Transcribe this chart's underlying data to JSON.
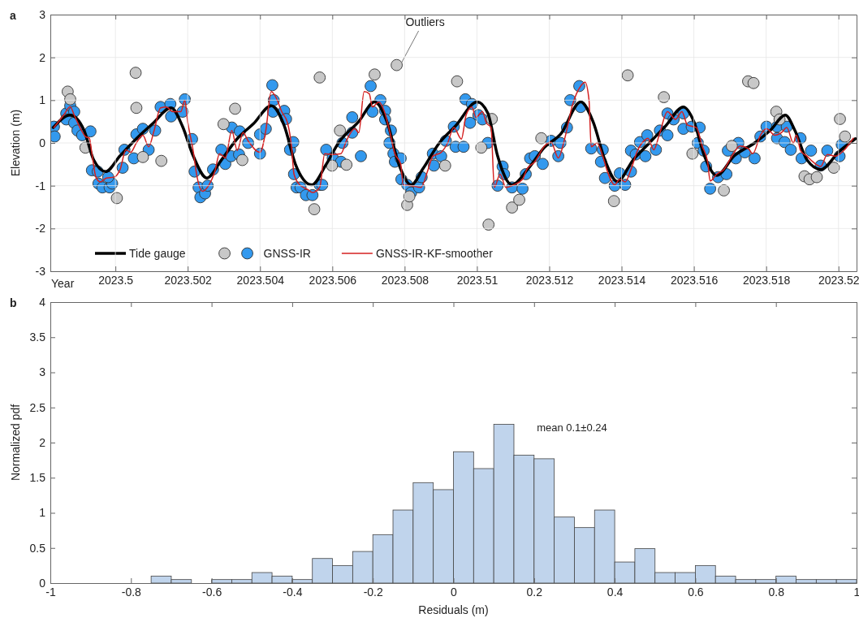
{
  "chart_data": [
    {
      "type": "line",
      "title": "a",
      "xlabel": "Year",
      "ylabel": "Elevation (m)",
      "xlim": [
        2023.4982,
        2023.5205
      ],
      "xticks": [
        2023.5,
        2023.502,
        2023.504,
        2023.506,
        2023.508,
        2023.51,
        2023.512,
        2023.514,
        2023.516,
        2023.518,
        2023.52
      ],
      "ylim": [
        -3,
        3
      ],
      "yticks": [
        -3,
        -2,
        -1,
        0,
        1,
        2,
        3
      ],
      "grid": true,
      "legend": "bottom left",
      "annotations": [
        {
          "text": "Outliers",
          "x": 2023.50778,
          "y": 1.82
        }
      ],
      "series": [
        {
          "name": "Tide gauge",
          "type": "line",
          "color": "#000000",
          "x": [
            2023.49828,
            2023.49875,
            2023.49913,
            2023.4994,
            2023.49973,
            2023.50013,
            2023.50058,
            2023.50103,
            2023.50154,
            2023.50185,
            2023.50215,
            2023.50253,
            2023.50293,
            2023.50337,
            2023.50382,
            2023.50431,
            2023.50467,
            2023.50498,
            2023.50543,
            2023.50583,
            2023.50617,
            2023.50673,
            2023.50717,
            2023.50751,
            2023.50784,
            2023.50818,
            2023.50851,
            2023.50896,
            2023.50941,
            2023.51001,
            2023.5103,
            2023.51057,
            2023.51097,
            2023.51142,
            2023.51187,
            2023.51231,
            2023.51287,
            2023.51321,
            2023.51354,
            2023.51388,
            2023.51432,
            2023.51477,
            2023.51522,
            2023.51571,
            2023.516,
            2023.51629,
            2023.51663,
            2023.51712,
            2023.51768,
            2023.51812,
            2023.51853,
            2023.51879,
            2023.51913,
            2023.51951,
            2023.52002,
            2023.52047
          ],
          "values": [
            0.36,
            0.65,
            0.3,
            -0.4,
            -0.67,
            -0.3,
            0.1,
            0.45,
            0.82,
            0.4,
            -0.3,
            -0.82,
            -0.4,
            0.1,
            0.45,
            0.87,
            0.4,
            -0.5,
            -0.98,
            -0.5,
            0,
            0.5,
            0.96,
            0.5,
            -0.5,
            -0.98,
            -0.6,
            0,
            0.4,
            0.96,
            0.7,
            -0.3,
            -0.98,
            -0.6,
            -0.1,
            0.2,
            0.96,
            0.5,
            -0.4,
            -0.9,
            -0.4,
            0,
            0.4,
            0.84,
            0.5,
            -0.3,
            -0.76,
            -0.3,
            0,
            0.3,
            0.65,
            0.3,
            -0.4,
            -0.62,
            -0.2,
            0.1
          ]
        },
        {
          "name": "GNSS-IR",
          "type": "scatter",
          "marker": "circle",
          "color": "#3399ee",
          "x": [
            2023.4983,
            2023.49832,
            2023.49864,
            2023.49875,
            2023.49886,
            2023.49864,
            2023.49886,
            2023.49895,
            2023.49908,
            2023.49931,
            2023.49935,
            2023.49951,
            2023.49953,
            2023.49964,
            2023.49984,
            2023.49991,
            2023.4998,
            2023.5002,
            2023.50025,
            2023.50051,
            2023.50058,
            2023.50076,
            2023.50092,
            2023.5011,
            2023.50125,
            2023.50152,
            2023.50154,
            2023.50186,
            2023.50192,
            2023.50212,
            2023.50219,
            2023.5023,
            2023.50235,
            2023.50248,
            2023.50255,
            2023.5027,
            2023.50293,
            2023.50304,
            2023.5032,
            2023.50322,
            2023.50344,
            2023.50342,
            2023.50367,
            2023.504,
            2023.504,
            2023.50416,
            2023.50434,
            2023.50438,
            2023.50436,
            2023.50467,
            2023.50472,
            2023.50483,
            2023.50492,
            2023.50494,
            2023.50501,
            2023.50512,
            2023.50527,
            2023.50545,
            2023.50565,
            2023.50572,
            2023.50583,
            2023.50601,
            2023.50624,
            2023.50628,
            2023.50655,
            2023.50655,
            2023.50679,
            2023.50706,
            2023.50711,
            2023.50733,
            2023.50746,
            2023.50746,
            2023.50762,
            2023.50758,
            2023.50769,
            2023.50773,
            2023.50789,
            2023.50791,
            2023.50807,
            2023.50818,
            2023.5084,
            2023.50847,
            2023.50878,
            2023.50881,
            2023.50901,
            2023.50914,
            2023.50936,
            2023.50941,
            2023.50963,
            2023.50968,
            2023.50981,
            2023.50986,
            2023.51004,
            2023.51015,
            2023.5103,
            2023.51057,
            2023.51071,
            2023.51075,
            2023.51097,
            2023.51126,
            2023.51135,
            2023.51147,
            2023.5116,
            2023.51182,
            2023.51205,
            2023.51225,
            2023.51231,
            2023.51249,
            2023.51258,
            2023.51283,
            2023.51287,
            2023.51316,
            2023.51348,
            2023.51343,
            2023.51354,
            2023.51381,
            2023.51395,
            2023.5141,
            2023.51426,
            2023.51426,
            2023.51439,
            2023.51451,
            2023.51466,
            2023.51471,
            2023.51495,
            2023.51506,
            2023.51527,
            2023.51527,
            2023.51544,
            2023.51571,
            2023.51571,
            2023.51594,
            2023.51616,
            2023.51611,
            2023.51627,
            2023.51634,
            2023.51645,
            2023.51667,
            2023.5169,
            2023.51694,
            2023.51716,
            2023.51723,
            2023.51741,
            2023.51768,
            2023.51784,
            2023.51801,
            2023.5183,
            2023.5183,
            2023.51851,
            2023.51857,
            2023.51868,
            2023.51895,
            2023.51898,
            2023.51924,
            2023.51951,
            2023.51969,
            2023.52003,
            2023.52009
          ],
          "values": [
            0.38,
            0.15,
            0.69,
            0.87,
            0.73,
            0.55,
            0.47,
            0.29,
            0.18,
            0.27,
            -0.64,
            -0.67,
            -0.95,
            -1.04,
            -1.04,
            -0.95,
            -0.8,
            -0.58,
            -0.16,
            -0.36,
            0.2,
            0.33,
            -0.16,
            0.29,
            0.84,
            0.91,
            0.62,
            0.73,
            1.02,
            0.09,
            -0.67,
            -1.04,
            -1.27,
            -1.18,
            -1,
            -0.62,
            -0.16,
            -0.49,
            -0.31,
            0.36,
            0.27,
            -0.27,
            0,
            -0.25,
            0.2,
            0.33,
            1.35,
            1,
            0.73,
            0.75,
            0.56,
            -0.16,
            0.02,
            -0.73,
            -1.04,
            -1.04,
            -1.22,
            -1.22,
            -0.98,
            -0.98,
            -0.16,
            -0.35,
            -0.44,
            0,
            0.24,
            0.6,
            -0.31,
            1.33,
            0.73,
            1,
            0.75,
            0.55,
            0.29,
            0,
            -0.25,
            -0.44,
            -0.36,
            -0.85,
            -0.98,
            -1.16,
            -1.04,
            -0.8,
            -0.25,
            -0.53,
            -0.31,
            0.05,
            0.38,
            -0.09,
            -0.09,
            1.02,
            0.47,
            0.91,
            0.65,
            0.55,
            0,
            -1,
            -0.55,
            -0.73,
            -1.04,
            -1.07,
            -0.73,
            -0.36,
            -0.31,
            -0.49,
            0.05,
            -0.31,
            0,
            0.36,
            1,
            1.33,
            0.84,
            -0.13,
            -0.16,
            -0.44,
            -0.82,
            -1,
            -0.71,
            -0.98,
            -0.67,
            -0.18,
            -0.27,
            0.02,
            -0.31,
            0.18,
            -0.16,
            0.29,
            0.18,
            0.69,
            0.55,
            0.69,
            0.33,
            0.38,
            0.36,
            0,
            -0.18,
            -0.55,
            -1.07,
            -0.8,
            -0.73,
            -0.18,
            -0.36,
            0,
            -0.22,
            -0.36,
            0.15,
            0.38,
            0.38,
            0.11,
            0.02,
            0.38,
            -0.16,
            0.11,
            -0.36,
            -0.18,
            -0.53,
            -0.18,
            -0.31,
            -0.04
          ]
        },
        {
          "type": "scatter",
          "marker": "circle",
          "color": "#c8c8c8",
          "x": [
            2023.49868,
            2023.49875,
            2023.50056,
            2023.50058,
            2023.49917,
            2023.50076,
            2023.50127,
            2023.50004,
            2023.50331,
            2023.50299,
            2023.50351,
            2023.5055,
            2023.50565,
            2023.50717,
            2023.50778,
            2023.50945,
            2023.50621,
            2023.50599,
            2023.50639,
            2023.50807,
            2023.50813,
            2023.50912,
            2023.51012,
            2023.51041,
            2023.51032,
            2023.51097,
            2023.51117,
            2023.51178,
            2023.51417,
            2023.51517,
            2023.51379,
            2023.51596,
            2023.51683,
            2023.5175,
            2023.51765,
            2023.51828,
            2023.51837,
            2023.51906,
            2023.5192,
            2023.5194,
            2023.51987,
            2023.52004,
            2023.52018,
            2023.51705
          ],
          "values": [
            1.2,
            1.02,
            1.64,
            0.82,
            -0.11,
            -0.33,
            -0.42,
            -1.29,
            0.8,
            0.44,
            -0.4,
            -1.55,
            1.53,
            1.6,
            1.82,
            1.44,
            0.29,
            -0.53,
            -0.51,
            -1.45,
            -1.25,
            -0.53,
            -0.11,
            0.56,
            -1.91,
            -1.51,
            -1.33,
            0.11,
            1.58,
            1.07,
            -1.36,
            -0.25,
            -1.11,
            1.44,
            1.4,
            0.73,
            0.55,
            -0.78,
            -0.85,
            -0.8,
            -0.58,
            0.56,
            0.15,
            -0.07
          ]
        },
        {
          "name": "GNSS-IR-KF-smoother",
          "type": "line",
          "color": "#d42020",
          "x": [
            2023.4983,
            2023.49857,
            2023.49875,
            2023.49886,
            2023.49902,
            2023.49917,
            2023.49928,
            2023.49935,
            2023.49946,
            2023.49958,
            2023.49975,
            2023.49996,
            2023.50013,
            2023.50029,
            2023.50042,
            2023.50058,
            2023.50076,
            2023.50092,
            2023.50107,
            2023.50125,
            2023.50141,
            2023.50159,
            2023.50181,
            2023.50192,
            2023.50199,
            2023.50215,
            2023.50226,
            2023.50241,
            2023.50259,
            2023.50275,
            2023.50288,
            2023.50304,
            2023.50322,
            2023.50337,
            2023.50353,
            2023.50367,
            2023.504,
            2023.50416,
            2023.50431,
            2023.50445,
            2023.5046,
            2023.50476,
            2023.50487,
            2023.50494,
            2023.5051,
            2023.50532,
            2023.50545,
            2023.50565,
            2023.50579,
            2023.50601,
            2023.50624,
            2023.50639,
            2023.50662,
            2023.50673,
            2023.50688,
            2023.50702,
            2023.50711,
            2023.50729,
            2023.50744,
            2023.50758,
            2023.50773,
            2023.50789,
            2023.50796,
            2023.50818,
            2023.50845,
            2023.50863,
            2023.50878,
            2023.50901,
            2023.50919,
            2023.50936,
            2023.50957,
            2023.5097,
            2023.50986,
            2023.50997,
            2023.51015,
            2023.51026,
            2023.51039,
            2023.51048,
            2023.51064,
            2023.5108,
            2023.51102,
            2023.51126,
            2023.51138,
            2023.5116,
            2023.51187,
            2023.51205,
            2023.51225,
            2023.51243,
            2023.51265,
            2023.51287,
            2023.51299,
            2023.5131,
            2023.51316,
            2023.51332,
            2023.51348,
            2023.51361,
            2023.51381,
            2023.51395,
            2023.5141,
            2023.51426,
            2023.51444,
            2023.51462,
            2023.51473,
            2023.51489,
            2023.51504,
            2023.51527,
            2023.51549,
            2023.51567,
            2023.51582,
            2023.51607,
            2023.51623,
            2023.51638,
            2023.51645,
            2023.51663,
            2023.51683,
            2023.51705,
            2023.51728,
            2023.5175,
            2023.51763,
            2023.51784,
            2023.51801,
            2023.51824,
            2023.51842,
            2023.51857,
            2023.51875,
            2023.51884,
            2023.51895,
            2023.51913,
            2023.51929,
            2023.51951,
            2023.51969,
            2023.51991,
            2023.52014,
            2023.52041
          ],
          "values": [
            0.36,
            0.65,
            0.85,
            0.65,
            0.36,
            0.15,
            0.11,
            -0.25,
            -0.8,
            -0.91,
            -0.82,
            -0.8,
            -0.62,
            -0.16,
            -0.22,
            0,
            0.18,
            -0.09,
            0.29,
            0.82,
            0.84,
            0.73,
            0.73,
            1,
            0.55,
            -0.18,
            -0.8,
            -1.13,
            -0.98,
            -0.67,
            -0.25,
            -0.35,
            0.29,
            -0.18,
            0.24,
            0.05,
            -0.22,
            0.29,
            1.2,
            1.05,
            0.73,
            0.47,
            -0.07,
            -0.73,
            -0.98,
            -1.09,
            -1.16,
            -1.04,
            -0.25,
            -0.27,
            -0.25,
            0.05,
            0.33,
            0.24,
            1.2,
            1.15,
            0.84,
            0.96,
            0.73,
            0.29,
            -0.25,
            -0.49,
            -0.98,
            -1,
            -1.04,
            -0.67,
            -0.31,
            -0.22,
            0,
            0.36,
            0.09,
            0.65,
            0.84,
            0.6,
            0.73,
            0.47,
            0.36,
            -1.04,
            -0.73,
            -1.04,
            -0.98,
            -0.85,
            -0.62,
            -0.44,
            -0.07,
            0.02,
            -0.35,
            0.11,
            0.91,
            1.33,
            1.42,
            1,
            -0.09,
            0,
            -0.31,
            -0.67,
            -0.98,
            -0.85,
            -0.91,
            -0.62,
            -0.18,
            0.05,
            0.11,
            -0.16,
            0.18,
            0.73,
            0.55,
            0.73,
            0.42,
            0.36,
            -0.07,
            -0.44,
            -0.89,
            -0.73,
            -0.62,
            -0.31,
            -0.07,
            -0.13,
            -0.25,
            0.18,
            0.33,
            0.18,
            0.24,
            0.36,
            0,
            0.18,
            -0.18,
            -0.31,
            -0.44,
            -0.55,
            -0.27,
            -0.31,
            -0.18,
            0.11
          ]
        }
      ]
    },
    {
      "type": "histogram",
      "title": "b",
      "xlabel": "Residuals (m)",
      "ylabel": "Normalized pdf",
      "xlim": [
        -1,
        1
      ],
      "xticks": [
        -1,
        -0.8,
        -0.6,
        -0.4,
        -0.2,
        0,
        0.2,
        0.4,
        0.6,
        0.8,
        1
      ],
      "ylim": [
        0,
        4
      ],
      "yticks": [
        0,
        0.5,
        1,
        1.5,
        2,
        2.5,
        3,
        3.5,
        4
      ],
      "color": "#c0d4ec",
      "annotations": [
        "mean  0.1±0.24"
      ],
      "bins": [
        -1,
        -0.95,
        -0.9,
        -0.85,
        -0.8,
        -0.75,
        -0.7,
        -0.65,
        -0.6,
        -0.55,
        -0.5,
        -0.45,
        -0.4,
        -0.35,
        -0.3,
        -0.25,
        -0.2,
        -0.15,
        -0.1,
        -0.05,
        0,
        0.05,
        0.1,
        0.15,
        0.2,
        0.25,
        0.3,
        0.35,
        0.4,
        0.45,
        0.5,
        0.55,
        0.6,
        0.65,
        0.7,
        0.75,
        0.8,
        0.85,
        0.9,
        0.95,
        1
      ],
      "values": [
        0,
        0,
        0,
        0,
        0,
        0.1,
        0.05,
        0,
        0.05,
        0.05,
        0.15,
        0.1,
        0.05,
        0.35,
        0.25,
        0.45,
        0.69,
        1.04,
        1.43,
        1.33,
        1.87,
        1.63,
        2.26,
        1.82,
        1.77,
        0.94,
        0.79,
        1.04,
        0.3,
        0.49,
        0.15,
        0.15,
        0.25,
        0.1,
        0.05,
        0.05,
        0.1,
        0.05,
        0.05,
        0.05
      ]
    }
  ]
}
